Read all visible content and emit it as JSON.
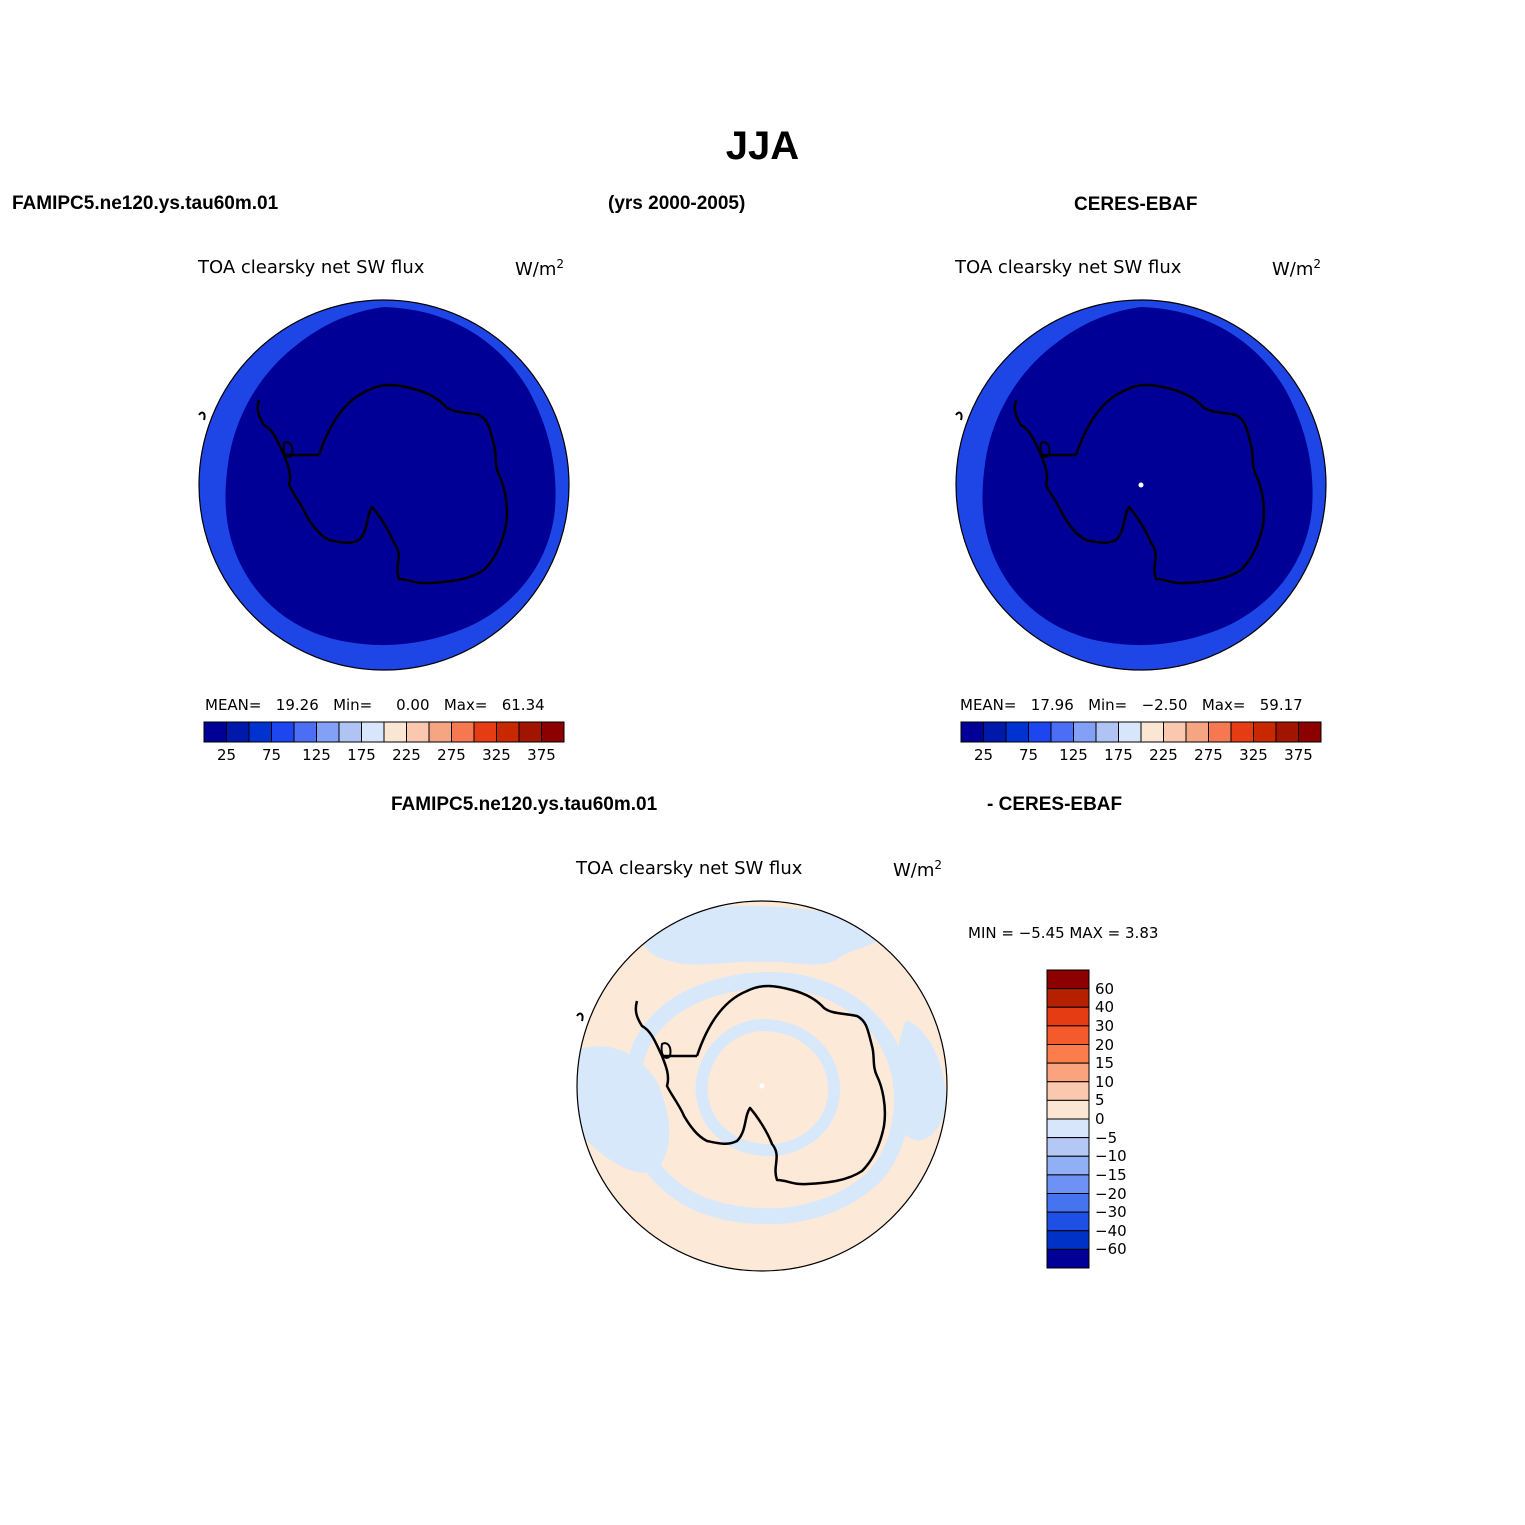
{
  "page": {
    "main_title": "JJA",
    "left_header": "FAMIPC5.ne120.ys.tau60m.01",
    "center_header": "(yrs 2000-2005)",
    "right_header": "CERES-EBAF",
    "diff_header_left": "FAMIPC5.ne120.ys.tau60m.01",
    "diff_header_right": "- CERES-EBAF"
  },
  "panels": [
    {
      "id": "model",
      "title": "TOA clearsky net SW flux",
      "units": "W/m",
      "units_sup": "2",
      "stats": {
        "mean_label": "MEAN=",
        "mean_value": "19.26",
        "min_label": "Min=",
        "min_value": "0.00",
        "max_label": "Max=",
        "max_value": "61.34"
      }
    },
    {
      "id": "obs",
      "title": "TOA clearsky net SW flux",
      "units": "W/m",
      "units_sup": "2",
      "stats": {
        "mean_label": "MEAN=",
        "mean_value": "17.96",
        "min_label": "Min=",
        "min_value": "−2.50",
        "max_label": "Max=",
        "max_value": "59.17"
      }
    },
    {
      "id": "diff",
      "title": "TOA clearsky net SW flux",
      "units": "W/m",
      "units_sup": "2",
      "stats_text": "MIN =   −5.45 MAX =     3.83"
    }
  ],
  "colorbar_abs": {
    "colors": [
      "#000096",
      "#0019aa",
      "#0032d2",
      "#1e46f0",
      "#4b6ef5",
      "#82a0f5",
      "#afc3f5",
      "#d7e6fa",
      "#fae6d2",
      "#fac8af",
      "#f5a582",
      "#f57850",
      "#e63c14",
      "#c82800",
      "#a01400",
      "#8c0000"
    ],
    "tick_labels": [
      "25",
      "75",
      "125",
      "175",
      "225",
      "275",
      "325",
      "375"
    ]
  },
  "colorbar_diff": {
    "colors_top_to_bottom": [
      "#8c0000",
      "#b42000",
      "#e63c14",
      "#f55a2d",
      "#fa7d4b",
      "#faa37d",
      "#fac8af",
      "#fae6d2",
      "#d7e6fa",
      "#b4c8f5",
      "#91aff5",
      "#6e91f5",
      "#4673f0",
      "#1e50e6",
      "#0032c8",
      "#000096"
    ],
    "tick_labels": [
      "60",
      "40",
      "30",
      "20",
      "15",
      "10",
      "5",
      "0",
      "−5",
      "−10",
      "−15",
      "−20",
      "−30",
      "−40",
      "−60"
    ]
  },
  "map_colors": {
    "outer_ring": "#1e46e6",
    "inner_fill": "#000096",
    "diff_background": "#fde9d8",
    "diff_negative": "#d8e8fb",
    "coastline": "#000000"
  }
}
